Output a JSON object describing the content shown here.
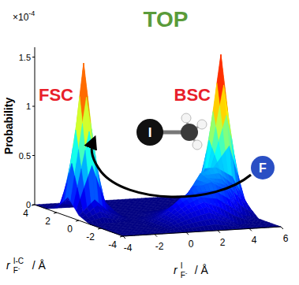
{
  "chart_data": {
    "type": "surface",
    "title": "TOP",
    "z_label": "Probability",
    "z_multiplier": {
      "base": "×10",
      "exponent": "-4"
    },
    "x_label": {
      "symbol": "r",
      "sup": "I",
      "sub": "F",
      "sub_charge": "-",
      "unit": "/ Å"
    },
    "y_label": {
      "symbol": "r",
      "sup": "I-C",
      "sub": "F",
      "sub_charge": "-",
      "unit": "/ Å"
    },
    "xlim": [
      -4,
      6
    ],
    "xticks": [
      -4,
      -2,
      0,
      2,
      4,
      6
    ],
    "ylim": [
      -4,
      4
    ],
    "yticks": [
      -4,
      -2,
      0,
      2,
      4
    ],
    "zlim": [
      0,
      1.6
    ],
    "zticks": [
      0,
      0.5,
      1,
      1.5
    ],
    "grid_x": [
      -4,
      -3,
      -2,
      -1,
      0,
      1,
      2,
      3,
      4,
      5,
      6
    ],
    "grid_y": [
      -4,
      -3,
      -2,
      -1,
      0,
      1,
      2,
      3,
      4
    ],
    "z": [
      [
        0,
        0,
        0,
        0,
        0,
        0,
        0,
        0,
        0,
        0,
        0
      ],
      [
        0,
        0,
        0,
        0,
        0.08,
        0.15,
        0.2,
        0.1,
        0,
        0,
        0
      ],
      [
        0,
        0,
        0,
        0,
        0.1,
        0.25,
        0.35,
        0.4,
        0.3,
        0.05,
        0
      ],
      [
        0,
        0,
        0,
        0,
        0.03,
        0.1,
        0.2,
        0.45,
        0.5,
        0.4,
        0.1
      ],
      [
        0.05,
        0.2,
        0.05,
        0,
        0,
        0.03,
        0.08,
        0.15,
        0.45,
        1.6,
        0.25
      ],
      [
        0.2,
        1.55,
        0.2,
        0,
        0,
        0,
        0,
        0.03,
        0.15,
        0.3,
        0.05
      ],
      [
        0.05,
        0.2,
        0.05,
        0,
        0,
        0,
        0,
        0,
        0,
        0.03,
        0
      ],
      [
        0,
        0,
        0,
        0,
        0,
        0,
        0,
        0,
        0,
        0,
        0
      ],
      [
        0,
        0,
        0,
        0,
        0,
        0,
        0,
        0,
        0,
        0,
        0
      ]
    ],
    "peaks": [
      {
        "label": "FSC",
        "x": -3,
        "y": 1
      },
      {
        "label": "BSC",
        "x": 5,
        "y": 0
      }
    ],
    "molecule": {
      "atoms": [
        "I",
        "F"
      ]
    }
  }
}
